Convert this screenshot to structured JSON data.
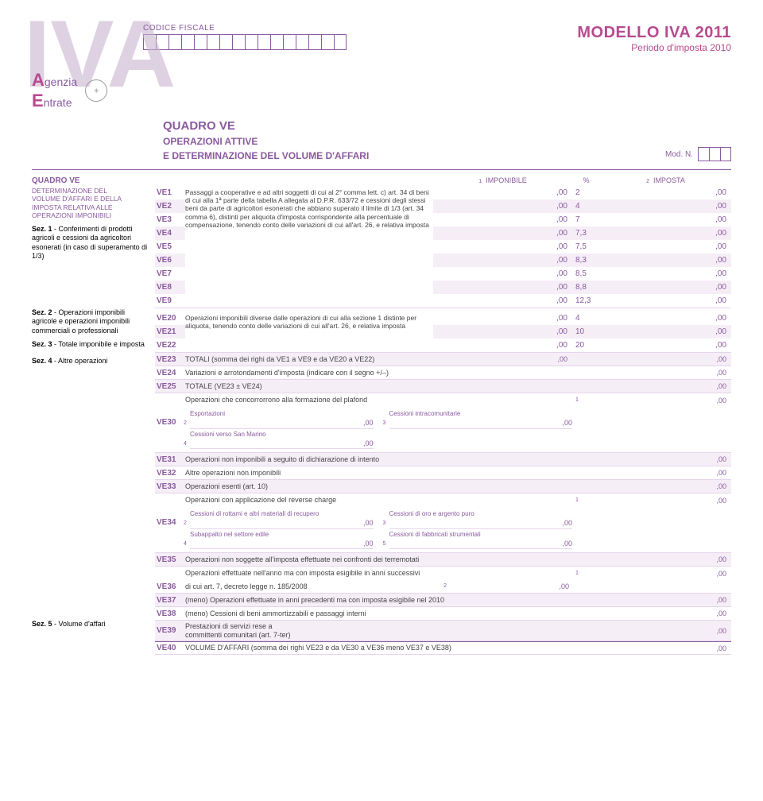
{
  "header": {
    "codice_fiscale_label": "CODICE FISCALE",
    "big_letter": "IVA",
    "cf_box_count": 16,
    "title": "MODELLO IVA 2011",
    "subtitle": "Periodo d'imposta 2010",
    "agenzia_top": "genzia",
    "agenzia_bottom": "ntrate",
    "quadro_title": "QUADRO VE",
    "quadro_sub1": "OPERAZIONI ATTIVE",
    "quadro_sub2": "E DETERMINAZIONE DEL VOLUME D'AFFARI",
    "mod_label": "Mod. N.",
    "mod_box_count": 3
  },
  "columns": {
    "imponibile": "IMPONIBILE",
    "percent": "%",
    "imposta": "IMPOSTA",
    "tag1": "1",
    "tag2": "2"
  },
  "left": {
    "block1_title": "QUADRO VE",
    "block1_l1": "DETERMINAZIONE DEL",
    "block1_l2": "VOLUME D'AFFARI E DELLA",
    "block1_l3": "IMPOSTA RELATIVA ALLE",
    "block1_l4": "OPERAZIONI IMPONIBILI",
    "sez1_t": "Sez. 1",
    "sez1": " - Conferimenti di prodotti agricoli e cessioni da agricoltori esonerati (in caso di superamento di 1/3)",
    "sez2_t": "Sez. 2",
    "sez2": " - Operazioni imponibili agricole e operazioni imponibili commerciali o professionali",
    "sez3_t": "Sez. 3",
    "sez3": " - Totale imponibile e imposta",
    "sez4_t": "Sez. 4",
    "sez4": " - Altre operazioni",
    "sez5_t": "Sez. 5",
    "sez5": " - Volume d'affari"
  },
  "desc_sez1": "Passaggi a cooperative e ad altri soggetti di cui al 2° comma lett. c) art. 34 di beni di cui alla 1ª parte della tabella A allegata al D.P.R. 633/72 e cessioni degli stessi beni da parte di agricoltori esonerati che abbiano superato il limite di 1/3 (art. 34 comma 6), distinti per aliquota d'imposta corrispondente alla percentuale di compensazione, tenendo conto delle variazioni di cui all'art. 26, e relativa imposta",
  "sez1_rows": [
    {
      "code": "VE1",
      "pc": "2"
    },
    {
      "code": "VE2",
      "pc": "4"
    },
    {
      "code": "VE3",
      "pc": "7"
    },
    {
      "code": "VE4",
      "pc": "7,3"
    },
    {
      "code": "VE5",
      "pc": "7,5"
    },
    {
      "code": "VE6",
      "pc": "8,3"
    },
    {
      "code": "VE7",
      "pc": "8,5"
    },
    {
      "code": "VE8",
      "pc": "8,8"
    },
    {
      "code": "VE9",
      "pc": "12,3"
    }
  ],
  "desc_sez2": "Operazioni imponibili diverse dalle operazioni di cui alla sezione 1 distinte per aliquota, tenendo conto delle variazioni di cui all'art. 26, e relativa imposta",
  "sez2_rows": [
    {
      "code": "VE20",
      "pc": "4"
    },
    {
      "code": "VE21",
      "pc": "10"
    },
    {
      "code": "VE22",
      "pc": "20"
    }
  ],
  "sez3": {
    "ve23": {
      "code": "VE23",
      "desc": "TOTALI (somma dei righi da VE1 a VE9 e da VE20 a VE22)"
    },
    "ve24": {
      "code": "VE24",
      "desc": "Variazioni e arrotondamenti d'imposta (indicare con il segno +/–)"
    },
    "ve25": {
      "code": "VE25",
      "desc": "TOTALE (VE23 ± VE24)"
    }
  },
  "sez4": {
    "ve30": {
      "code": "VE30",
      "head": "Operazioni che concorrorrono alla formazione del plafond",
      "sub_esport": "Esportazioni",
      "sub_intra": "Cessioni intracomunitarie",
      "sub_sanmarino": "Cessioni verso San Marino"
    },
    "ve31": {
      "code": "VE31",
      "desc": "Operazioni non imponibili a seguito di dichiarazione di intento"
    },
    "ve32": {
      "code": "VE32",
      "desc": "Altre operazioni non imponibili"
    },
    "ve33": {
      "code": "VE33",
      "desc": "Operazioni esenti (art. 10)"
    },
    "ve34": {
      "code": "VE34",
      "head": "Operazioni con applicazione del reverse charge",
      "sub_rottami": "Cessioni di rottami e altri materiali di recupero",
      "sub_oro": "Cessioni di oro e argento puro",
      "sub_subappalto": "Subappalto nel settore edile",
      "sub_fabbricati": "Cessioni di fabbricati strumentali"
    },
    "ve35": {
      "code": "VE35",
      "desc": "Operazioni non soggette all'imposta effettuate nei confronti dei terremotati"
    },
    "ve36": {
      "code": "VE36",
      "head": "Operazioni effettuate nell'anno ma con imposta esigibile in anni successivi",
      "sub": "di cui art. 7, decreto legge n. 185/2008"
    },
    "ve37": {
      "code": "VE37",
      "desc": "(meno) Operazioni effettuate in anni precedenti ma con imposta esigibile nel 2010"
    },
    "ve38": {
      "code": "VE38",
      "desc": "(meno) Cessioni di beni ammortizzabili e passaggi interni"
    },
    "ve39": {
      "code": "VE39",
      "l1": "Prestazioni di servizi rese a",
      "l2": "committenti comunitari (art. 7-ter)"
    }
  },
  "sez5": {
    "ve40": {
      "code": "VE40",
      "desc": "VOLUME D'AFFARI (somma dei righi VE23 e da VE30 a VE36 meno VE37 e VE38)"
    }
  },
  "suffix": ",00",
  "colors": {
    "purple": "#8a5a9e",
    "pink": "#b84a8f",
    "stripe": "#f6eef7",
    "border": "#e5d5ea"
  }
}
